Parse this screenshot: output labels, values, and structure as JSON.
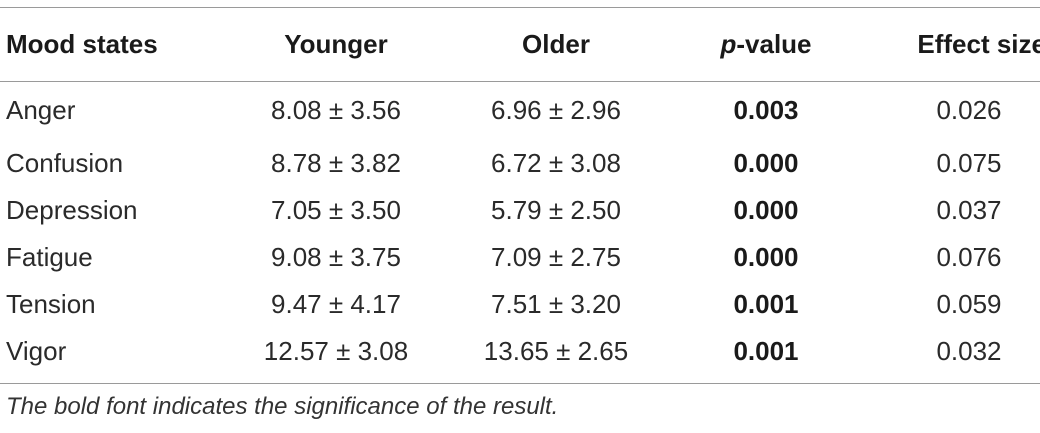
{
  "table": {
    "headers": {
      "mood_states": "Mood states",
      "younger": "Younger",
      "older": "Older",
      "p_italic": "p",
      "p_rest": "-value",
      "effect_size": "Effect size"
    },
    "rows": [
      {
        "mood": "Anger",
        "younger": "8.08 ± 3.56",
        "older": "6.96 ± 2.96",
        "p": "0.003",
        "effect": "0.026"
      },
      {
        "mood": "Confusion",
        "younger": "8.78 ± 3.82",
        "older": "6.72 ± 3.08",
        "p": "0.000",
        "effect": "0.075"
      },
      {
        "mood": "Depression",
        "younger": "7.05 ± 3.50",
        "older": "5.79 ± 2.50",
        "p": "0.000",
        "effect": "0.037"
      },
      {
        "mood": "Fatigue",
        "younger": "9.08 ± 3.75",
        "older": "7.09 ± 2.75",
        "p": "0.000",
        "effect": "0.076"
      },
      {
        "mood": "Tension",
        "younger": "9.47 ± 4.17",
        "older": "7.51 ± 3.20",
        "p": "0.001",
        "effect": "0.059"
      },
      {
        "mood": "Vigor",
        "younger": "12.57 ± 3.08",
        "older": "13.65 ± 2.65",
        "p": "0.001",
        "effect": "0.032"
      }
    ],
    "footnote": "The bold font indicates the significance of the result."
  }
}
